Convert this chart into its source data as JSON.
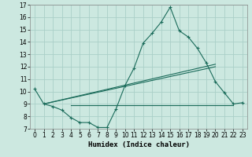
{
  "xlabel": "Humidex (Indice chaleur)",
  "ylabel": "",
  "bg_color": "#cce8e0",
  "grid_color": "#aacfc8",
  "line_color": "#1a6b5a",
  "xlim": [
    -0.5,
    23.5
  ],
  "ylim": [
    7,
    17
  ],
  "xticks": [
    0,
    1,
    2,
    3,
    4,
    5,
    6,
    7,
    8,
    9,
    10,
    11,
    12,
    13,
    14,
    15,
    16,
    17,
    18,
    19,
    20,
    21,
    22,
    23
  ],
  "yticks": [
    7,
    8,
    9,
    10,
    11,
    12,
    13,
    14,
    15,
    16,
    17
  ],
  "series1_x": [
    0,
    1,
    2,
    3,
    4,
    5,
    6,
    7,
    8,
    9,
    10,
    11,
    12,
    13,
    14,
    15,
    16,
    17,
    18,
    19,
    20,
    21,
    22,
    23
  ],
  "series1_y": [
    10.2,
    9.0,
    8.8,
    8.5,
    7.9,
    7.5,
    7.5,
    7.1,
    7.1,
    8.6,
    10.5,
    11.9,
    13.9,
    14.7,
    15.6,
    16.8,
    14.9,
    14.4,
    13.5,
    12.3,
    10.8,
    9.9,
    9.0,
    9.1
  ],
  "series2_x": [
    4,
    5,
    6,
    7,
    8,
    9,
    10,
    11,
    12,
    13,
    14,
    15,
    16,
    17,
    18,
    19,
    20,
    21,
    22
  ],
  "series2_y": [
    8.9,
    8.9,
    8.9,
    8.9,
    8.9,
    8.9,
    8.9,
    8.9,
    8.9,
    8.9,
    8.9,
    8.9,
    8.9,
    8.9,
    8.9,
    8.9,
    8.9,
    8.9,
    8.9
  ],
  "series3_x": [
    1,
    20
  ],
  "series3_y": [
    9.0,
    12.2
  ],
  "series4_x": [
    1,
    20
  ],
  "series4_y": [
    9.0,
    12.0
  ]
}
